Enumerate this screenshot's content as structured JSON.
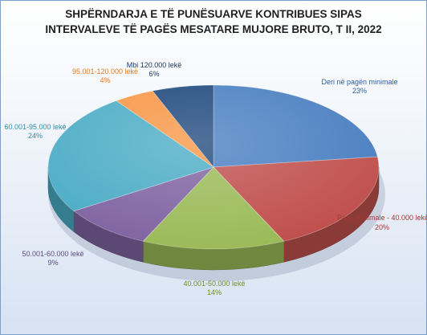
{
  "chart_data": {
    "type": "pie",
    "title_line1": "SHPËRNDARJA E TË PUNËSUARVE KONTRIBUES SIPAS",
    "title_line2": "INTERVALEVE TË PAGËS MESATARE MUJORE BRUTO, T II, 2022",
    "unit": "%",
    "slices": [
      {
        "label": "Deri në pagën minimale",
        "value": 23,
        "pct_text": "23%",
        "color": "#4a7fc1",
        "label_color": "#2e5e9e"
      },
      {
        "label": "Paga minimale - 40.000 lekë",
        "value": 20,
        "pct_text": "20%",
        "color": "#c0504d",
        "label_color": "#a33a37"
      },
      {
        "label": "40.001-50.000 lekë",
        "value": 14,
        "pct_text": "14%",
        "color": "#9bbb59",
        "label_color": "#6f8f2f"
      },
      {
        "label": "50.001-60.000 lekë",
        "value": 9,
        "pct_text": "9%",
        "color": "#8064a2",
        "label_color": "#5e4a80"
      },
      {
        "label": "60.001-95.000 lekë",
        "value": 24,
        "pct_text": "24%",
        "color": "#4bacc6",
        "label_color": "#2f8ea8"
      },
      {
        "label": "95.001-120.000 lekë",
        "value": 4,
        "pct_text": "4%",
        "color": "#f79646",
        "label_color": "#e07a1f"
      },
      {
        "label": "Mbi 120.000 lekë",
        "value": 6,
        "pct_text": "6%",
        "color": "#1f497d",
        "label_color": "#1f3864"
      }
    ]
  }
}
